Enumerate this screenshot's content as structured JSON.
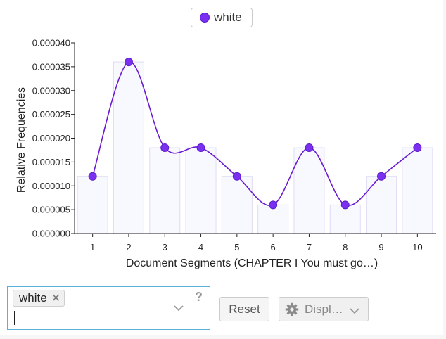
{
  "legend": {
    "label": "white",
    "color": "#7b2ff0"
  },
  "chart_data": {
    "type": "bar",
    "categories": [
      "1",
      "2",
      "3",
      "4",
      "5",
      "6",
      "7",
      "8",
      "9",
      "10"
    ],
    "series": [
      {
        "name": "white",
        "values": [
          1.2e-05,
          3.6e-05,
          1.8e-05,
          1.8e-05,
          1.2e-05,
          6e-06,
          1.8e-05,
          6e-06,
          1.2e-05,
          1.8e-05
        ]
      }
    ],
    "overlay": "smoothed line with markers",
    "xlabel": "Document Segments (CHAPTER I You must go…)",
    "ylabel": "Relative Frequencies",
    "ylim": [
      0,
      4e-05
    ],
    "yticks": [
      "0.000000",
      "0.000005",
      "0.000010",
      "0.000015",
      "0.000020",
      "0.000025",
      "0.000030",
      "0.000035",
      "0.000040"
    ],
    "grid": false,
    "line_color": "#6a1bd1",
    "marker_color": "#7b2ff0",
    "bar_fill": "#f8f8ff",
    "bar_stroke": "#e0dcf5"
  },
  "controls": {
    "term_chip": "white",
    "chip_remove": "✕",
    "help": "?",
    "reset_label": "Reset",
    "display_label": "Displ…"
  }
}
